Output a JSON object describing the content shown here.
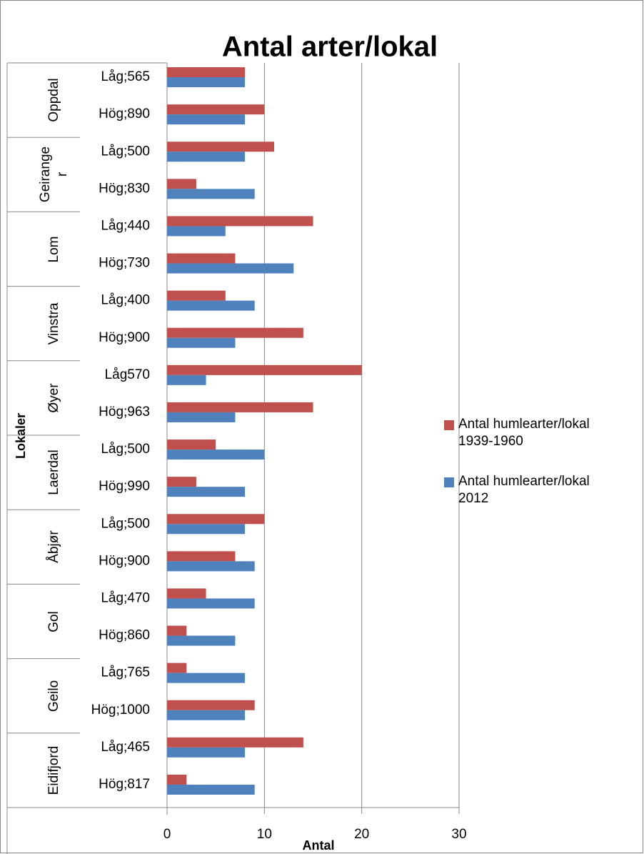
{
  "chart_data": {
    "type": "hbar",
    "title": "Antal arter/lokal",
    "x_label": "Antal",
    "y_label": "Lokaler",
    "groups": [
      {
        "name": "Oppdal",
        "categories": [
          "Låg;565",
          "Hög;890"
        ]
      },
      {
        "name": "Geirange\nr",
        "categories": [
          "Låg;500",
          "Hög;830"
        ]
      },
      {
        "name": "Lom",
        "categories": [
          "Låg;440",
          "Hög;730"
        ]
      },
      {
        "name": "Vinstra",
        "categories": [
          "Låg;400",
          "Hög;900"
        ]
      },
      {
        "name": "Øyer",
        "categories": [
          "Låg570",
          "Hög;963"
        ]
      },
      {
        "name": "Laerdal",
        "categories": [
          "Låg;500",
          "Hög;990"
        ]
      },
      {
        "name": "Åbjør",
        "categories": [
          "Låg;500",
          "Hög;900"
        ]
      },
      {
        "name": "Gol",
        "categories": [
          "Låg;470",
          "Hög;860"
        ]
      },
      {
        "name": "Geilo",
        "categories": [
          "Låg;765",
          "Hög;1000"
        ]
      },
      {
        "name": "Eidifjord",
        "categories": [
          "Låg;465",
          "Hög;817"
        ]
      }
    ],
    "series": [
      {
        "name": "Antal humlearter/lokal\n1939-1960",
        "color": "#c0504d",
        "values": [
          8,
          10,
          11,
          3,
          15,
          7,
          6,
          14,
          20,
          15,
          5,
          3,
          10,
          7,
          4,
          2,
          2,
          9,
          14,
          2
        ]
      },
      {
        "name": "Antal humlearter/lokal\n2012",
        "color": "#4f81bd",
        "values": [
          8,
          8,
          8,
          9,
          6,
          13,
          9,
          7,
          4,
          7,
          10,
          8,
          8,
          9,
          9,
          7,
          8,
          8,
          8,
          9
        ]
      }
    ],
    "xlim": [
      0,
      30
    ],
    "xticks": [
      0,
      10,
      20,
      30
    ],
    "grid": true,
    "legend": "right"
  }
}
